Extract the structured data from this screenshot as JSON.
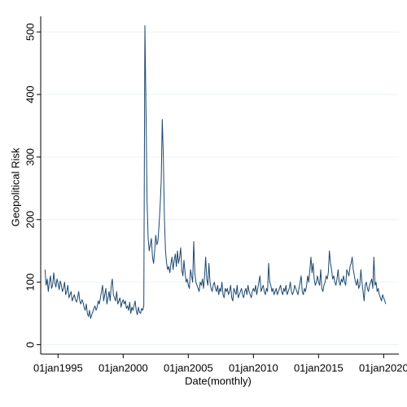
{
  "chart_data": {
    "type": "line",
    "xlabel": "Date(monthly)",
    "ylabel": "Geopolitical Risk",
    "xlim": [
      "1993-09-01",
      "2021-03-01"
    ],
    "ylim": [
      -15,
      525
    ],
    "xticks": [
      {
        "value": "1995-01-01",
        "label": "01jan1995"
      },
      {
        "value": "2000-01-01",
        "label": "01jan2000"
      },
      {
        "value": "2005-01-01",
        "label": "01jan2005"
      },
      {
        "value": "2010-01-01",
        "label": "01jan2010"
      },
      {
        "value": "2015-01-01",
        "label": "01jan2015"
      },
      {
        "value": "2020-01-01",
        "label": "01jan2020"
      }
    ],
    "yticks": [
      0,
      100,
      200,
      300,
      400,
      500
    ],
    "grid": true,
    "x": [
      "1994-01-01",
      "1994-02-01",
      "1994-03-01",
      "1994-04-01",
      "1994-05-01",
      "1994-06-01",
      "1994-07-01",
      "1994-08-01",
      "1994-09-01",
      "1994-10-01",
      "1994-11-01",
      "1994-12-01",
      "1995-01-01",
      "1995-02-01",
      "1995-03-01",
      "1995-04-01",
      "1995-05-01",
      "1995-06-01",
      "1995-07-01",
      "1995-08-01",
      "1995-09-01",
      "1995-10-01",
      "1995-11-01",
      "1995-12-01",
      "1996-01-01",
      "1996-02-01",
      "1996-03-01",
      "1996-04-01",
      "1996-05-01",
      "1996-06-01",
      "1996-07-01",
      "1996-08-01",
      "1996-09-01",
      "1996-10-01",
      "1996-11-01",
      "1996-12-01",
      "1997-01-01",
      "1997-02-01",
      "1997-03-01",
      "1997-04-01",
      "1997-05-01",
      "1997-06-01",
      "1997-07-01",
      "1997-08-01",
      "1997-09-01",
      "1997-10-01",
      "1997-11-01",
      "1997-12-01",
      "1998-01-01",
      "1998-02-01",
      "1998-03-01",
      "1998-04-01",
      "1998-05-01",
      "1998-06-01",
      "1998-07-01",
      "1998-08-01",
      "1998-09-01",
      "1998-10-01",
      "1998-11-01",
      "1998-12-01",
      "1999-01-01",
      "1999-02-01",
      "1999-03-01",
      "1999-04-01",
      "1999-05-01",
      "1999-06-01",
      "1999-07-01",
      "1999-08-01",
      "1999-09-01",
      "1999-10-01",
      "1999-11-01",
      "1999-12-01",
      "2000-01-01",
      "2000-02-01",
      "2000-03-01",
      "2000-04-01",
      "2000-05-01",
      "2000-06-01",
      "2000-07-01",
      "2000-08-01",
      "2000-09-01",
      "2000-10-01",
      "2000-11-01",
      "2000-12-01",
      "2001-01-01",
      "2001-02-01",
      "2001-03-01",
      "2001-04-01",
      "2001-05-01",
      "2001-06-01",
      "2001-07-01",
      "2001-08-01",
      "2001-09-01",
      "2001-10-01",
      "2001-11-01",
      "2001-12-01",
      "2002-01-01",
      "2002-02-01",
      "2002-03-01",
      "2002-04-01",
      "2002-05-01",
      "2002-06-01",
      "2002-07-01",
      "2002-08-01",
      "2002-09-01",
      "2002-10-01",
      "2002-11-01",
      "2002-12-01",
      "2003-01-01",
      "2003-02-01",
      "2003-03-01",
      "2003-04-01",
      "2003-05-01",
      "2003-06-01",
      "2003-07-01",
      "2003-08-01",
      "2003-09-01",
      "2003-10-01",
      "2003-11-01",
      "2003-12-01",
      "2004-01-01",
      "2004-02-01",
      "2004-03-01",
      "2004-04-01",
      "2004-05-01",
      "2004-06-01",
      "2004-07-01",
      "2004-08-01",
      "2004-09-01",
      "2004-10-01",
      "2004-11-01",
      "2004-12-01",
      "2005-01-01",
      "2005-02-01",
      "2005-03-01",
      "2005-04-01",
      "2005-05-01",
      "2005-06-01",
      "2005-07-01",
      "2005-08-01",
      "2005-09-01",
      "2005-10-01",
      "2005-11-01",
      "2005-12-01",
      "2006-01-01",
      "2006-02-01",
      "2006-03-01",
      "2006-04-01",
      "2006-05-01",
      "2006-06-01",
      "2006-07-01",
      "2006-08-01",
      "2006-09-01",
      "2006-10-01",
      "2006-11-01",
      "2006-12-01",
      "2007-01-01",
      "2007-02-01",
      "2007-03-01",
      "2007-04-01",
      "2007-05-01",
      "2007-06-01",
      "2007-07-01",
      "2007-08-01",
      "2007-09-01",
      "2007-10-01",
      "2007-11-01",
      "2007-12-01",
      "2008-01-01",
      "2008-02-01",
      "2008-03-01",
      "2008-04-01",
      "2008-05-01",
      "2008-06-01",
      "2008-07-01",
      "2008-08-01",
      "2008-09-01",
      "2008-10-01",
      "2008-11-01",
      "2008-12-01",
      "2009-01-01",
      "2009-02-01",
      "2009-03-01",
      "2009-04-01",
      "2009-05-01",
      "2009-06-01",
      "2009-07-01",
      "2009-08-01",
      "2009-09-01",
      "2009-10-01",
      "2009-11-01",
      "2009-12-01",
      "2010-01-01",
      "2010-02-01",
      "2010-03-01",
      "2010-04-01",
      "2010-05-01",
      "2010-06-01",
      "2010-07-01",
      "2010-08-01",
      "2010-09-01",
      "2010-10-01",
      "2010-11-01",
      "2010-12-01",
      "2011-01-01",
      "2011-02-01",
      "2011-03-01",
      "2011-04-01",
      "2011-05-01",
      "2011-06-01",
      "2011-07-01",
      "2011-08-01",
      "2011-09-01",
      "2011-10-01",
      "2011-11-01",
      "2011-12-01",
      "2012-01-01",
      "2012-02-01",
      "2012-03-01",
      "2012-04-01",
      "2012-05-01",
      "2012-06-01",
      "2012-07-01",
      "2012-08-01",
      "2012-09-01",
      "2012-10-01",
      "2012-11-01",
      "2012-12-01",
      "2013-01-01",
      "2013-02-01",
      "2013-03-01",
      "2013-04-01",
      "2013-05-01",
      "2013-06-01",
      "2013-07-01",
      "2013-08-01",
      "2013-09-01",
      "2013-10-01",
      "2013-11-01",
      "2013-12-01",
      "2014-01-01",
      "2014-02-01",
      "2014-03-01",
      "2014-04-01",
      "2014-05-01",
      "2014-06-01",
      "2014-07-01",
      "2014-08-01",
      "2014-09-01",
      "2014-10-01",
      "2014-11-01",
      "2014-12-01",
      "2015-01-01",
      "2015-02-01",
      "2015-03-01",
      "2015-04-01",
      "2015-05-01",
      "2015-06-01",
      "2015-07-01",
      "2015-08-01",
      "2015-09-01",
      "2015-10-01",
      "2015-11-01",
      "2015-12-01",
      "2016-01-01",
      "2016-02-01",
      "2016-03-01",
      "2016-04-01",
      "2016-05-01",
      "2016-06-01",
      "2016-07-01",
      "2016-08-01",
      "2016-09-01",
      "2016-10-01",
      "2016-11-01",
      "2016-12-01",
      "2017-01-01",
      "2017-02-01",
      "2017-03-01",
      "2017-04-01",
      "2017-05-01",
      "2017-06-01",
      "2017-07-01",
      "2017-08-01",
      "2017-09-01",
      "2017-10-01",
      "2017-11-01",
      "2017-12-01",
      "2018-01-01",
      "2018-02-01",
      "2018-03-01",
      "2018-04-01",
      "2018-05-01",
      "2018-06-01",
      "2018-07-01",
      "2018-08-01",
      "2018-09-01",
      "2018-10-01",
      "2018-11-01",
      "2018-12-01",
      "2019-01-01",
      "2019-02-01",
      "2019-03-01",
      "2019-04-01",
      "2019-05-01",
      "2019-06-01",
      "2019-07-01",
      "2019-08-01",
      "2019-09-01",
      "2019-10-01",
      "2019-11-01",
      "2019-12-01",
      "2020-01-01",
      "2020-02-01",
      "2020-03-01"
    ],
    "series": [
      {
        "name": "Geopolitical Risk",
        "color": "#1a476f",
        "values": [
          120,
          95,
          105,
          85,
          100,
          110,
          90,
          95,
          115,
          100,
          92,
          105,
          98,
          88,
          102,
          95,
          85,
          90,
          100,
          80,
          85,
          95,
          75,
          80,
          85,
          70,
          75,
          80,
          72,
          68,
          75,
          85,
          70,
          65,
          72,
          68,
          60,
          55,
          65,
          50,
          45,
          55,
          42,
          48,
          52,
          58,
          62,
          55,
          60,
          70,
          65,
          75,
          85,
          95,
          70,
          80,
          90,
          65,
          75,
          85,
          70,
          95,
          105,
          80,
          75,
          70,
          85,
          65,
          70,
          75,
          60,
          68,
          72,
          65,
          70,
          58,
          62,
          55,
          68,
          50,
          60,
          55,
          62,
          70,
          55,
          48,
          60,
          52,
          50,
          58,
          55,
          62,
          510,
          380,
          230,
          170,
          150,
          160,
          170,
          140,
          130,
          150,
          175,
          160,
          165,
          190,
          220,
          260,
          360,
          300,
          200,
          150,
          130,
          120,
          125,
          115,
          130,
          140,
          120,
          135,
          145,
          125,
          150,
          130,
          140,
          155,
          120,
          110,
          135,
          115,
          100,
          105,
          95,
          90,
          120,
          110,
          100,
          165,
          115,
          100,
          95,
          90,
          85,
          100,
          95,
          105,
          90,
          110,
          140,
          105,
          95,
          130,
          100,
          90,
          85,
          95,
          100,
          90,
          85,
          95,
          80,
          90,
          85,
          100,
          80,
          75,
          90,
          85,
          90,
          80,
          85,
          95,
          75,
          70,
          90,
          85,
          80,
          95,
          75,
          80,
          85,
          90,
          80,
          75,
          85,
          90,
          80,
          95,
          85,
          80,
          75,
          85,
          90,
          85,
          95,
          80,
          90,
          100,
          110,
          85,
          90,
          95,
          85,
          80,
          90,
          85,
          130,
          100,
          95,
          85,
          90,
          80,
          85,
          90,
          80,
          85,
          90,
          95,
          85,
          80,
          90,
          85,
          95,
          80,
          85,
          90,
          100,
          85,
          80,
          85,
          95,
          90,
          85,
          80,
          90,
          100,
          110,
          85,
          80,
          90,
          85,
          95,
          110,
          100,
          120,
          140,
          115,
          130,
          105,
          95,
          100,
          110,
          100,
          95,
          120,
          90,
          85,
          95,
          100,
          110,
          105,
          115,
          150,
          130,
          120,
          105,
          110,
          100,
          95,
          105,
          120,
          100,
          95,
          105,
          100,
          110,
          100,
          95,
          120,
          115,
          110,
          125,
          130,
          140,
          120,
          110,
          100,
          95,
          105,
          90,
          95,
          120,
          100,
          85,
          70,
          95,
          100,
          90,
          85,
          95,
          100,
          105,
          90,
          140,
          95,
          100,
          85,
          90,
          80,
          75,
          70,
          80,
          75,
          70,
          65
        ]
      }
    ]
  }
}
